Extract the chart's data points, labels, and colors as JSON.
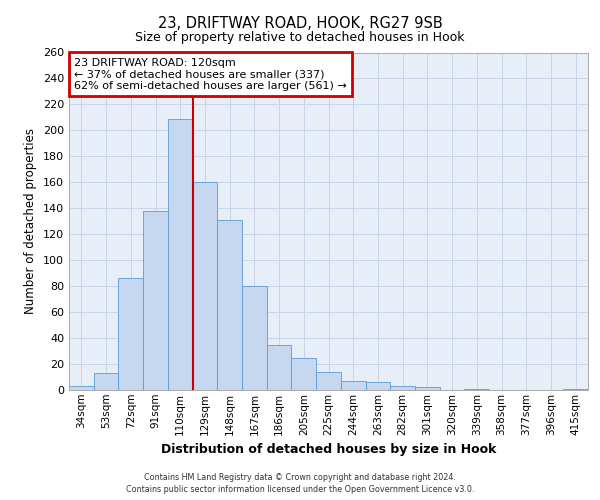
{
  "title1": "23, DRIFTWAY ROAD, HOOK, RG27 9SB",
  "title2": "Size of property relative to detached houses in Hook",
  "xlabel": "Distribution of detached houses by size in Hook",
  "ylabel": "Number of detached properties",
  "categories": [
    "34sqm",
    "53sqm",
    "72sqm",
    "91sqm",
    "110sqm",
    "129sqm",
    "148sqm",
    "167sqm",
    "186sqm",
    "205sqm",
    "225sqm",
    "244sqm",
    "263sqm",
    "282sqm",
    "301sqm",
    "320sqm",
    "339sqm",
    "358sqm",
    "377sqm",
    "396sqm",
    "415sqm"
  ],
  "values": [
    3,
    13,
    86,
    138,
    209,
    160,
    131,
    80,
    35,
    25,
    14,
    7,
    6,
    3,
    2,
    0,
    1,
    0,
    0,
    0,
    1
  ],
  "bar_color": "#c5d8f0",
  "bar_edge_color": "#5b9bd5",
  "grid_color": "#c8d4e8",
  "bg_color": "#e8eef8",
  "property_line_x": 4.5,
  "annotation_line1": "23 DRIFTWAY ROAD: 120sqm",
  "annotation_line2": "← 37% of detached houses are smaller (337)",
  "annotation_line3": "62% of semi-detached houses are larger (561) →",
  "annotation_box_fc": "#ffffff",
  "annotation_box_ec": "#cc0000",
  "property_line_color": "#cc0000",
  "footer1": "Contains HM Land Registry data © Crown copyright and database right 2024.",
  "footer2": "Contains public sector information licensed under the Open Government Licence v3.0.",
  "ylim": [
    0,
    260
  ],
  "yticks": [
    0,
    20,
    40,
    60,
    80,
    100,
    120,
    140,
    160,
    180,
    200,
    220,
    240,
    260
  ]
}
